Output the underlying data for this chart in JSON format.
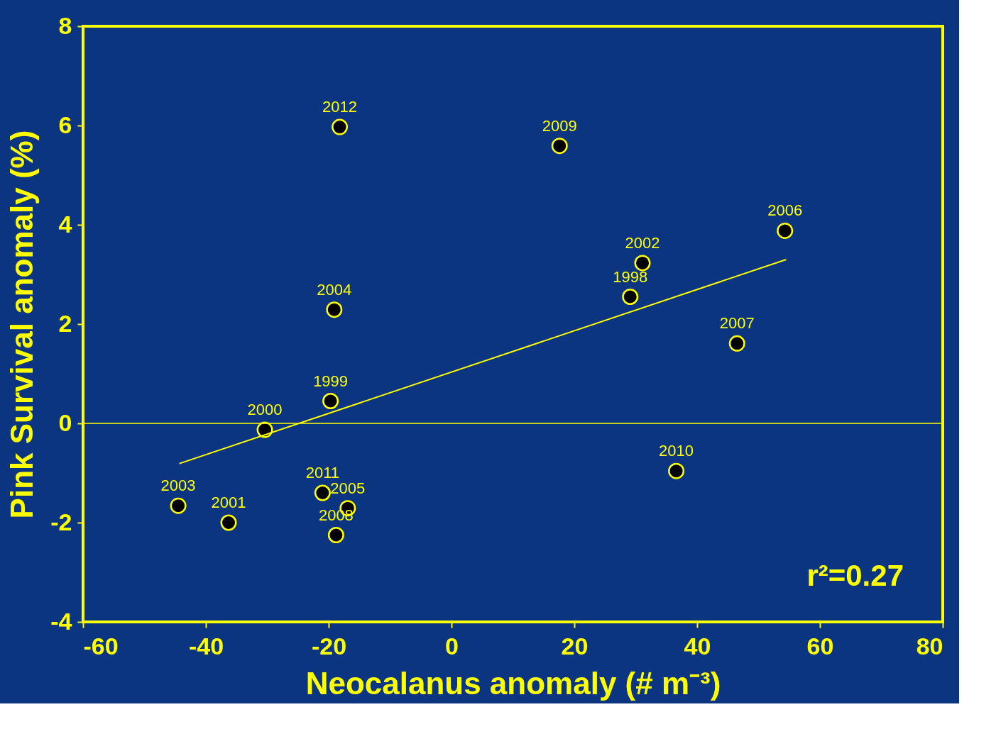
{
  "chart_data": {
    "type": "scatter",
    "xlabel": "Neocalanus anomaly (# m⁻³)",
    "ylabel": "Pink Survival anomaly (%)",
    "xlim": [
      -60,
      80
    ],
    "xticks": [
      -60,
      -40,
      -20,
      0,
      20,
      40,
      60,
      80
    ],
    "ylim": [
      -4,
      8
    ],
    "yticks": [
      -4,
      -2,
      0,
      2,
      4,
      6,
      8
    ],
    "grid": false,
    "series": [
      {
        "marker": "circle",
        "color": "#000000",
        "x": [
          -18.2,
          17.6,
          54.3,
          31.1,
          29.1,
          46.5,
          -19.1,
          -19.7,
          -30.4,
          36.6,
          -21.0,
          -16.9,
          -18.8,
          -44.5,
          -36.3
        ],
        "values": [
          5.97,
          5.59,
          3.88,
          3.23,
          2.55,
          1.61,
          2.29,
          0.45,
          -0.13,
          -0.96,
          -1.4,
          -1.71,
          -2.25,
          -1.66,
          -2.0
        ]
      },
      {
        "type": "line",
        "marker": "none",
        "color": "#ffff00",
        "x": [
          -44.3,
          54.5
        ],
        "values": [
          -0.81,
          3.3
        ]
      }
    ],
    "ref_lines": [
      {
        "axis": "y",
        "value": 0,
        "color": "#ffff00"
      }
    ],
    "annotations": [
      {
        "text": "2012",
        "x": -18.2,
        "y": 5.97
      },
      {
        "text": "2009",
        "x": 17.6,
        "y": 5.59
      },
      {
        "text": "2006",
        "x": 54.3,
        "y": 3.88
      },
      {
        "text": "2002",
        "x": 31.1,
        "y": 3.23
      },
      {
        "text": "1998",
        "x": 29.1,
        "y": 2.55
      },
      {
        "text": "2007",
        "x": 46.5,
        "y": 1.61
      },
      {
        "text": "2004",
        "x": -19.1,
        "y": 2.29
      },
      {
        "text": "1999",
        "x": -19.7,
        "y": 0.45
      },
      {
        "text": "2000",
        "x": -30.4,
        "y": -0.13
      },
      {
        "text": "2010",
        "x": 36.6,
        "y": -0.96
      },
      {
        "text": "2011",
        "x": -21.0,
        "y": -1.4
      },
      {
        "text": "2005",
        "x": -16.9,
        "y": -1.71
      },
      {
        "text": "2008",
        "x": -18.8,
        "y": -2.25
      },
      {
        "text": "2003",
        "x": -44.5,
        "y": -1.66
      },
      {
        "text": "2001",
        "x": -36.3,
        "y": -2.0
      },
      "r²=0.27"
    ]
  }
}
